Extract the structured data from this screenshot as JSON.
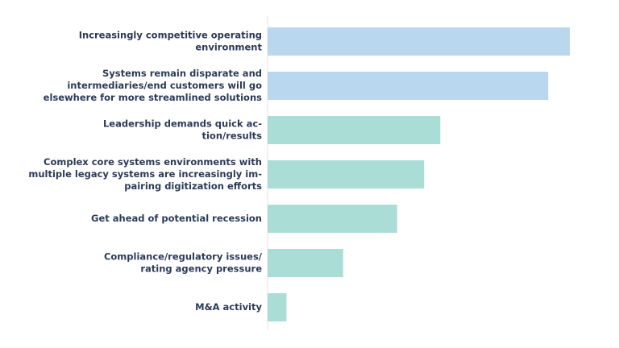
{
  "chart_data": {
    "type": "hbar",
    "categories": [
      [
        "Increasingly competitive operating",
        "environment"
      ],
      [
        "Systems remain disparate and",
        "intermediaries/end customers will go",
        "elsewhere for more streamlined solutions"
      ],
      [
        "Leadership demands quick ac-",
        "tion/results"
      ],
      [
        "Complex core systems environments with",
        "multiple legacy systems are increasingly im-",
        "pairing digitization efforts"
      ],
      [
        "Get ahead of potential recession"
      ],
      [
        "Compliance/regulatory issues/",
        "rating agency pressure"
      ],
      [
        "M&A activity"
      ]
    ],
    "values": [
      56,
      52,
      32,
      29,
      24,
      14,
      3.5
    ],
    "colors": [
      "#b9d8ef",
      "#b9d8ef",
      "#a9ddd6",
      "#a9ddd6",
      "#a9ddd6",
      "#a9ddd6",
      "#a9ddd6"
    ]
  }
}
